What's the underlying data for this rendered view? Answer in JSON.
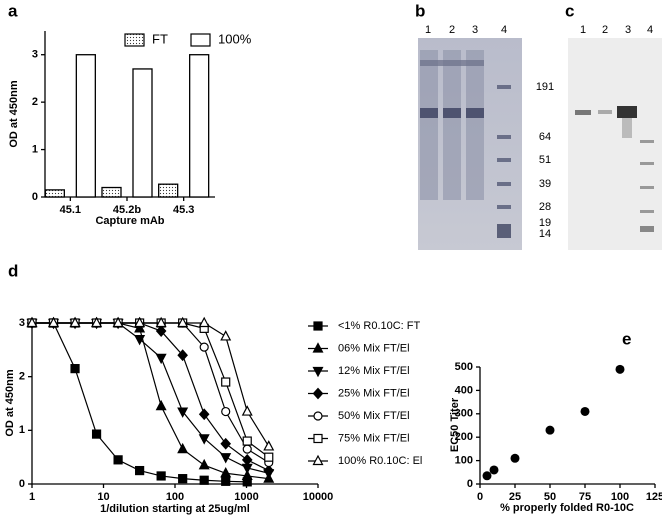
{
  "chart_data": [
    {
      "type": "bar",
      "panel": "a",
      "xlabel": "Capture mAb",
      "ylabel": "OD at 450nm",
      "categories": [
        "45.1",
        "45.2b",
        "45.3"
      ],
      "series": [
        {
          "name": "FT",
          "color": "#ffffff",
          "fill": "dotted",
          "values": [
            0.15,
            0.2,
            0.27
          ]
        },
        {
          "name": "100%",
          "color": "#ffffff",
          "values": [
            3.0,
            2.7,
            3.0
          ]
        }
      ],
      "ylim": [
        0,
        3.5
      ],
      "yticks": [
        0,
        1,
        2,
        3
      ]
    },
    {
      "type": "line",
      "panel": "d",
      "xlabel": "1/dilution starting at 25ug/ml",
      "ylabel": "OD at 450nm",
      "x": [
        1,
        2,
        4,
        8,
        16,
        32,
        64,
        128,
        256,
        512,
        1024,
        2048
      ],
      "series": [
        {
          "name": "<1% R0.10C: FT",
          "marker": "square",
          "values": [
            3,
            3,
            2.15,
            0.93,
            0.45,
            0.25,
            0.15,
            0.1,
            0.07,
            0.05,
            0.04,
            null
          ]
        },
        {
          "name": "06% Mix FT/El",
          "marker": "triangle-up",
          "values": [
            3,
            3,
            3,
            3,
            3,
            2.9,
            1.45,
            0.65,
            0.35,
            0.2,
            0.15,
            0.1
          ]
        },
        {
          "name": "12% Mix FT/El",
          "marker": "triangle-down",
          "values": [
            3,
            3,
            3,
            3,
            3,
            2.7,
            2.35,
            1.35,
            0.85,
            0.5,
            0.3,
            0.2
          ]
        },
        {
          "name": "25% Mix FT/El",
          "marker": "diamond",
          "values": [
            3,
            3,
            3,
            3,
            3,
            3,
            2.85,
            2.4,
            1.3,
            0.75,
            0.45,
            0.25
          ]
        },
        {
          "name": "50% Mix FT/El",
          "marker": "circle-open",
          "values": [
            3,
            3,
            3,
            3,
            3,
            3,
            3,
            3,
            2.55,
            1.35,
            0.65,
            0.4
          ]
        },
        {
          "name": "75% Mix FT/El",
          "marker": "square-open",
          "values": [
            3,
            3,
            3,
            3,
            3,
            3,
            3,
            3,
            2.9,
            1.9,
            0.8,
            0.5
          ]
        },
        {
          "name": "100% R0.10C: El",
          "marker": "triangle-open",
          "values": [
            3,
            3,
            3,
            3,
            3,
            3,
            3,
            3,
            3,
            2.75,
            1.35,
            0.7
          ]
        }
      ],
      "color": "#000000",
      "xlog": true,
      "xlim": [
        1,
        10000
      ],
      "xticks": [
        1,
        10,
        100,
        1000,
        10000
      ],
      "ylim": [
        0,
        3
      ],
      "yticks": [
        0,
        1,
        2,
        3
      ]
    },
    {
      "type": "scatter",
      "panel": "e",
      "xlabel": "% properly folded R0-10C",
      "ylabel": "EC50 Titer",
      "x": [
        5,
        10,
        25,
        50,
        75,
        100
      ],
      "values": [
        35,
        60,
        110,
        230,
        310,
        490
      ],
      "color": "#000000",
      "xlim": [
        0,
        125
      ],
      "xticks": [
        0,
        25,
        50,
        75,
        100,
        125
      ],
      "ylim": [
        0,
        500
      ],
      "yticks": [
        0,
        100,
        200,
        300,
        400,
        500
      ]
    }
  ],
  "gels": [
    {
      "panel": "b",
      "lanes": [
        "1",
        "2",
        "3",
        "4"
      ],
      "markers": [
        "191",
        "64",
        "51",
        "39",
        "28",
        "19",
        "14"
      ]
    },
    {
      "panel": "c",
      "lanes": [
        "1",
        "2",
        "3",
        "4"
      ]
    }
  ]
}
